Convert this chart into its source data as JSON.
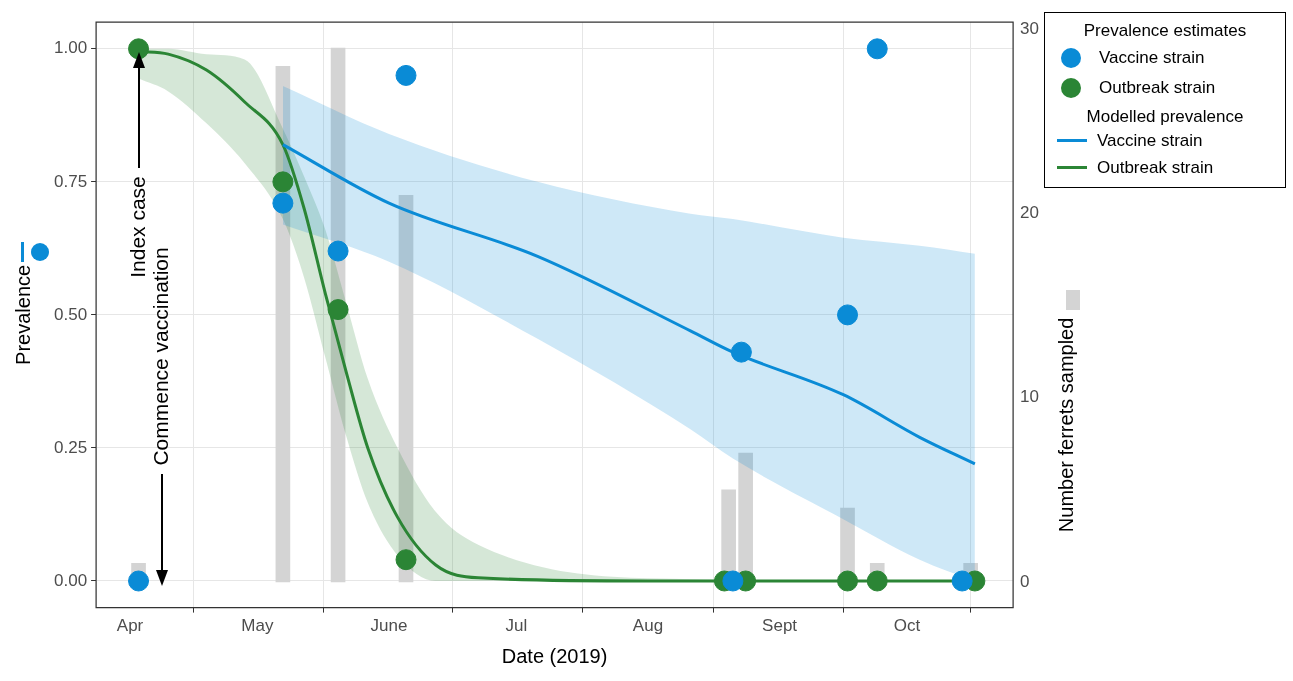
{
  "chart_data": {
    "type": "line",
    "xlabel": "Date (2019)",
    "ylabel": "Prevalence",
    "y2label": "Number ferrets sampled",
    "legend_title": "Prevalence estimates",
    "xlim": [
      "2019-03-24",
      "2019-10-26"
    ],
    "xticks": [
      {
        "value": "2019-04-01",
        "label": "Apr"
      },
      {
        "value": "2019-05-01",
        "label": "May"
      },
      {
        "value": "2019-06-01",
        "label": "June"
      },
      {
        "value": "2019-07-01",
        "label": "Jul"
      },
      {
        "value": "2019-08-01",
        "label": "Aug"
      },
      {
        "value": "2019-09-01",
        "label": "Sept"
      },
      {
        "value": "2019-10-01",
        "label": "Oct"
      }
    ],
    "ylim": [
      -0.05,
      1.05
    ],
    "yticks": [
      {
        "value": 0,
        "label": "0.00"
      },
      {
        "value": 0.25,
        "label": "0.25"
      },
      {
        "value": 0.5,
        "label": "0.50"
      },
      {
        "value": 0.75,
        "label": "0.75"
      },
      {
        "value": 1,
        "label": "1.00"
      }
    ],
    "y2lim": [
      -1.4,
      30.4
    ],
    "y2ticks": [
      0,
      10,
      20,
      30
    ],
    "grid": true,
    "legend": "right",
    "line_style": "solid",
    "annotations": [
      "Index case",
      "Commence vaccination",
      "Modelled prevalence"
    ],
    "series": [
      {
        "type": "bar",
        "axis": "y2",
        "color": "#d4d4d4",
        "x": [
          "2019-04-03",
          "2019-05-07",
          "2019-05-20",
          "2019-06-05",
          "2019-08-20",
          "2019-08-24",
          "2019-09-17",
          "2019-09-24",
          "2019-10-16"
        ],
        "values": [
          1,
          28,
          29,
          21,
          5,
          7,
          4,
          1,
          1
        ]
      },
      {
        "name": "Vaccine strain",
        "color": "#0a8bd6",
        "marker": "none",
        "x": [
          "2019-05-07",
          "2019-06-01",
          "2019-07-06",
          "2019-08-11",
          "2019-08-21",
          "2019-09-16",
          "2019-10-04",
          "2019-10-17"
        ],
        "values": [
          0.82,
          0.71,
          0.61,
          0.47,
          0.43,
          0.35,
          0.27,
          0.22
        ],
        "upper": [
          0.93,
          0.84,
          0.75,
          0.69,
          0.68,
          0.645,
          0.63,
          0.615
        ],
        "lower": [
          0.67,
          0.6,
          0.455,
          0.285,
          0.23,
          0.116,
          0.04,
          0
        ]
      },
      {
        "name": "Outbreak strain",
        "color": "#2b8535",
        "marker": "none",
        "x": [
          "2019-04-03",
          "2019-04-10",
          "2019-04-19",
          "2019-04-28",
          "2019-05-07",
          "2019-05-12",
          "2019-05-17",
          "2019-05-22",
          "2019-05-27",
          "2019-06-03",
          "2019-06-12",
          "2019-06-22",
          "2019-08-01",
          "2019-10-17"
        ],
        "values": [
          0.995,
          0.99,
          0.96,
          0.9,
          0.82,
          0.7,
          0.54,
          0.39,
          0.25,
          0.12,
          0.03,
          0.006,
          0,
          0
        ],
        "upper": [
          1,
          1,
          0.99,
          0.98,
          0.85,
          0.76,
          0.66,
          0.52,
          0.38,
          0.25,
          0.13,
          0.068,
          0.005,
          0
        ],
        "lower": [
          0.944,
          0.92,
          0.86,
          0.785,
          0.68,
          0.57,
          0.42,
          0.27,
          0.147,
          0.048,
          0,
          0,
          0,
          0
        ]
      },
      {
        "type": "scatter",
        "name": "Vaccine strain",
        "color": "#0a8bd6",
        "marker": "circle",
        "x": [
          "2019-04-03",
          "2019-05-07",
          "2019-05-20",
          "2019-06-05",
          "2019-08-21",
          "2019-08-23",
          "2019-09-17",
          "2019-09-24",
          "2019-10-14"
        ],
        "values": [
          0,
          0.71,
          0.62,
          0.95,
          0,
          0.43,
          0.5,
          1,
          0
        ]
      },
      {
        "type": "scatter",
        "name": "Outbreak strain",
        "color": "#2b8535",
        "marker": "circle",
        "x": [
          "2019-04-03",
          "2019-05-07",
          "2019-05-20",
          "2019-06-05",
          "2019-08-19",
          "2019-08-24",
          "2019-09-17",
          "2019-09-24",
          "2019-10-17"
        ],
        "values": [
          1,
          0.75,
          0.51,
          0.04,
          0,
          0,
          0,
          0,
          0
        ]
      }
    ]
  }
}
